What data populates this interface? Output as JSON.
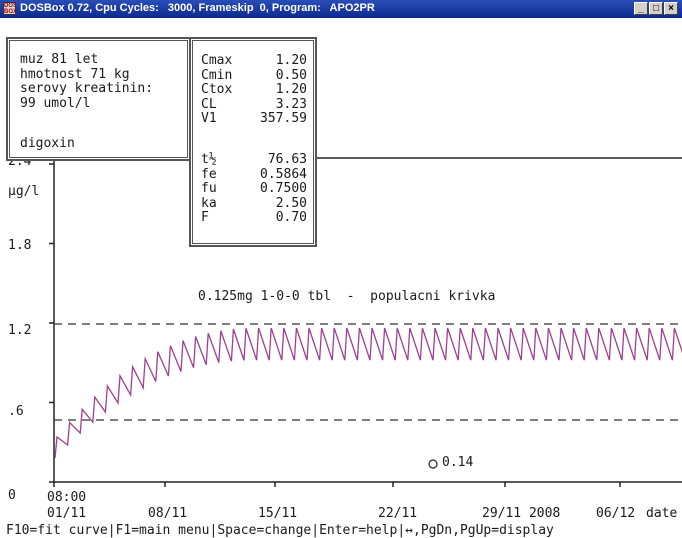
{
  "window": {
    "icon_text": "DOS BOX",
    "title": "DOSBox 0.72, Cpu Cycles:   3000, Frameskip  0, Program:   APO2PR",
    "buttons": [
      "minimize-icon",
      "maximize-icon",
      "close-icon"
    ]
  },
  "patient": {
    "lines": [
      "muz 81 let",
      "hmotnost 71 kg",
      "serovy kreatinin:",
      "99 umol/l"
    ],
    "drug": "digoxin"
  },
  "params": {
    "group1": [
      {
        "key": "Cmax",
        "value": "1.20"
      },
      {
        "key": "Cmin",
        "value": "0.50"
      },
      {
        "key": "Ctox",
        "value": "1.20"
      },
      {
        "key": "CL",
        "value": "3.23"
      },
      {
        "key": "V1",
        "value": "357.59"
      }
    ],
    "group2": [
      {
        "key": "t½",
        "value": "76.63"
      },
      {
        "key": "fe",
        "value": "0.5864"
      },
      {
        "key": "fu",
        "value": "0.7500"
      },
      {
        "key": "ka",
        "value": "2.50"
      },
      {
        "key": "F",
        "value": "0.70"
      }
    ]
  },
  "chart_data": {
    "type": "line",
    "title": "0.125mg 1-0-0 tbl  -  populacni krivka",
    "ylabel": "µg/l",
    "ylim": [
      0,
      2.4
    ],
    "y_ticks": [
      "0",
      ".6",
      "1.2",
      "1.8",
      "2.4"
    ],
    "x_ticks": [
      "01/11",
      "08/11",
      "15/11",
      "22/11",
      "29/11 2008",
      "06/12"
    ],
    "xlabel": "date",
    "start_time": "08:00",
    "reference_lines": [
      {
        "label": "Cmax",
        "y": 1.2,
        "style": "dashed"
      },
      {
        "label": "Cmin",
        "y": 0.5,
        "style": "dashed"
      }
    ],
    "series": [
      {
        "kind": "sawtooth",
        "color": "#a0408c",
        "approx_trough_start": 0.25,
        "approx_peak_start": 0.4,
        "steady_trough": 0.95,
        "steady_peak": 1.18
      }
    ],
    "marker": {
      "value_label": "0.14"
    }
  },
  "status_bar": "F10=fit curve|F1=main menu|Space=change|Enter=help|↔,PgDn,PgUp=display"
}
